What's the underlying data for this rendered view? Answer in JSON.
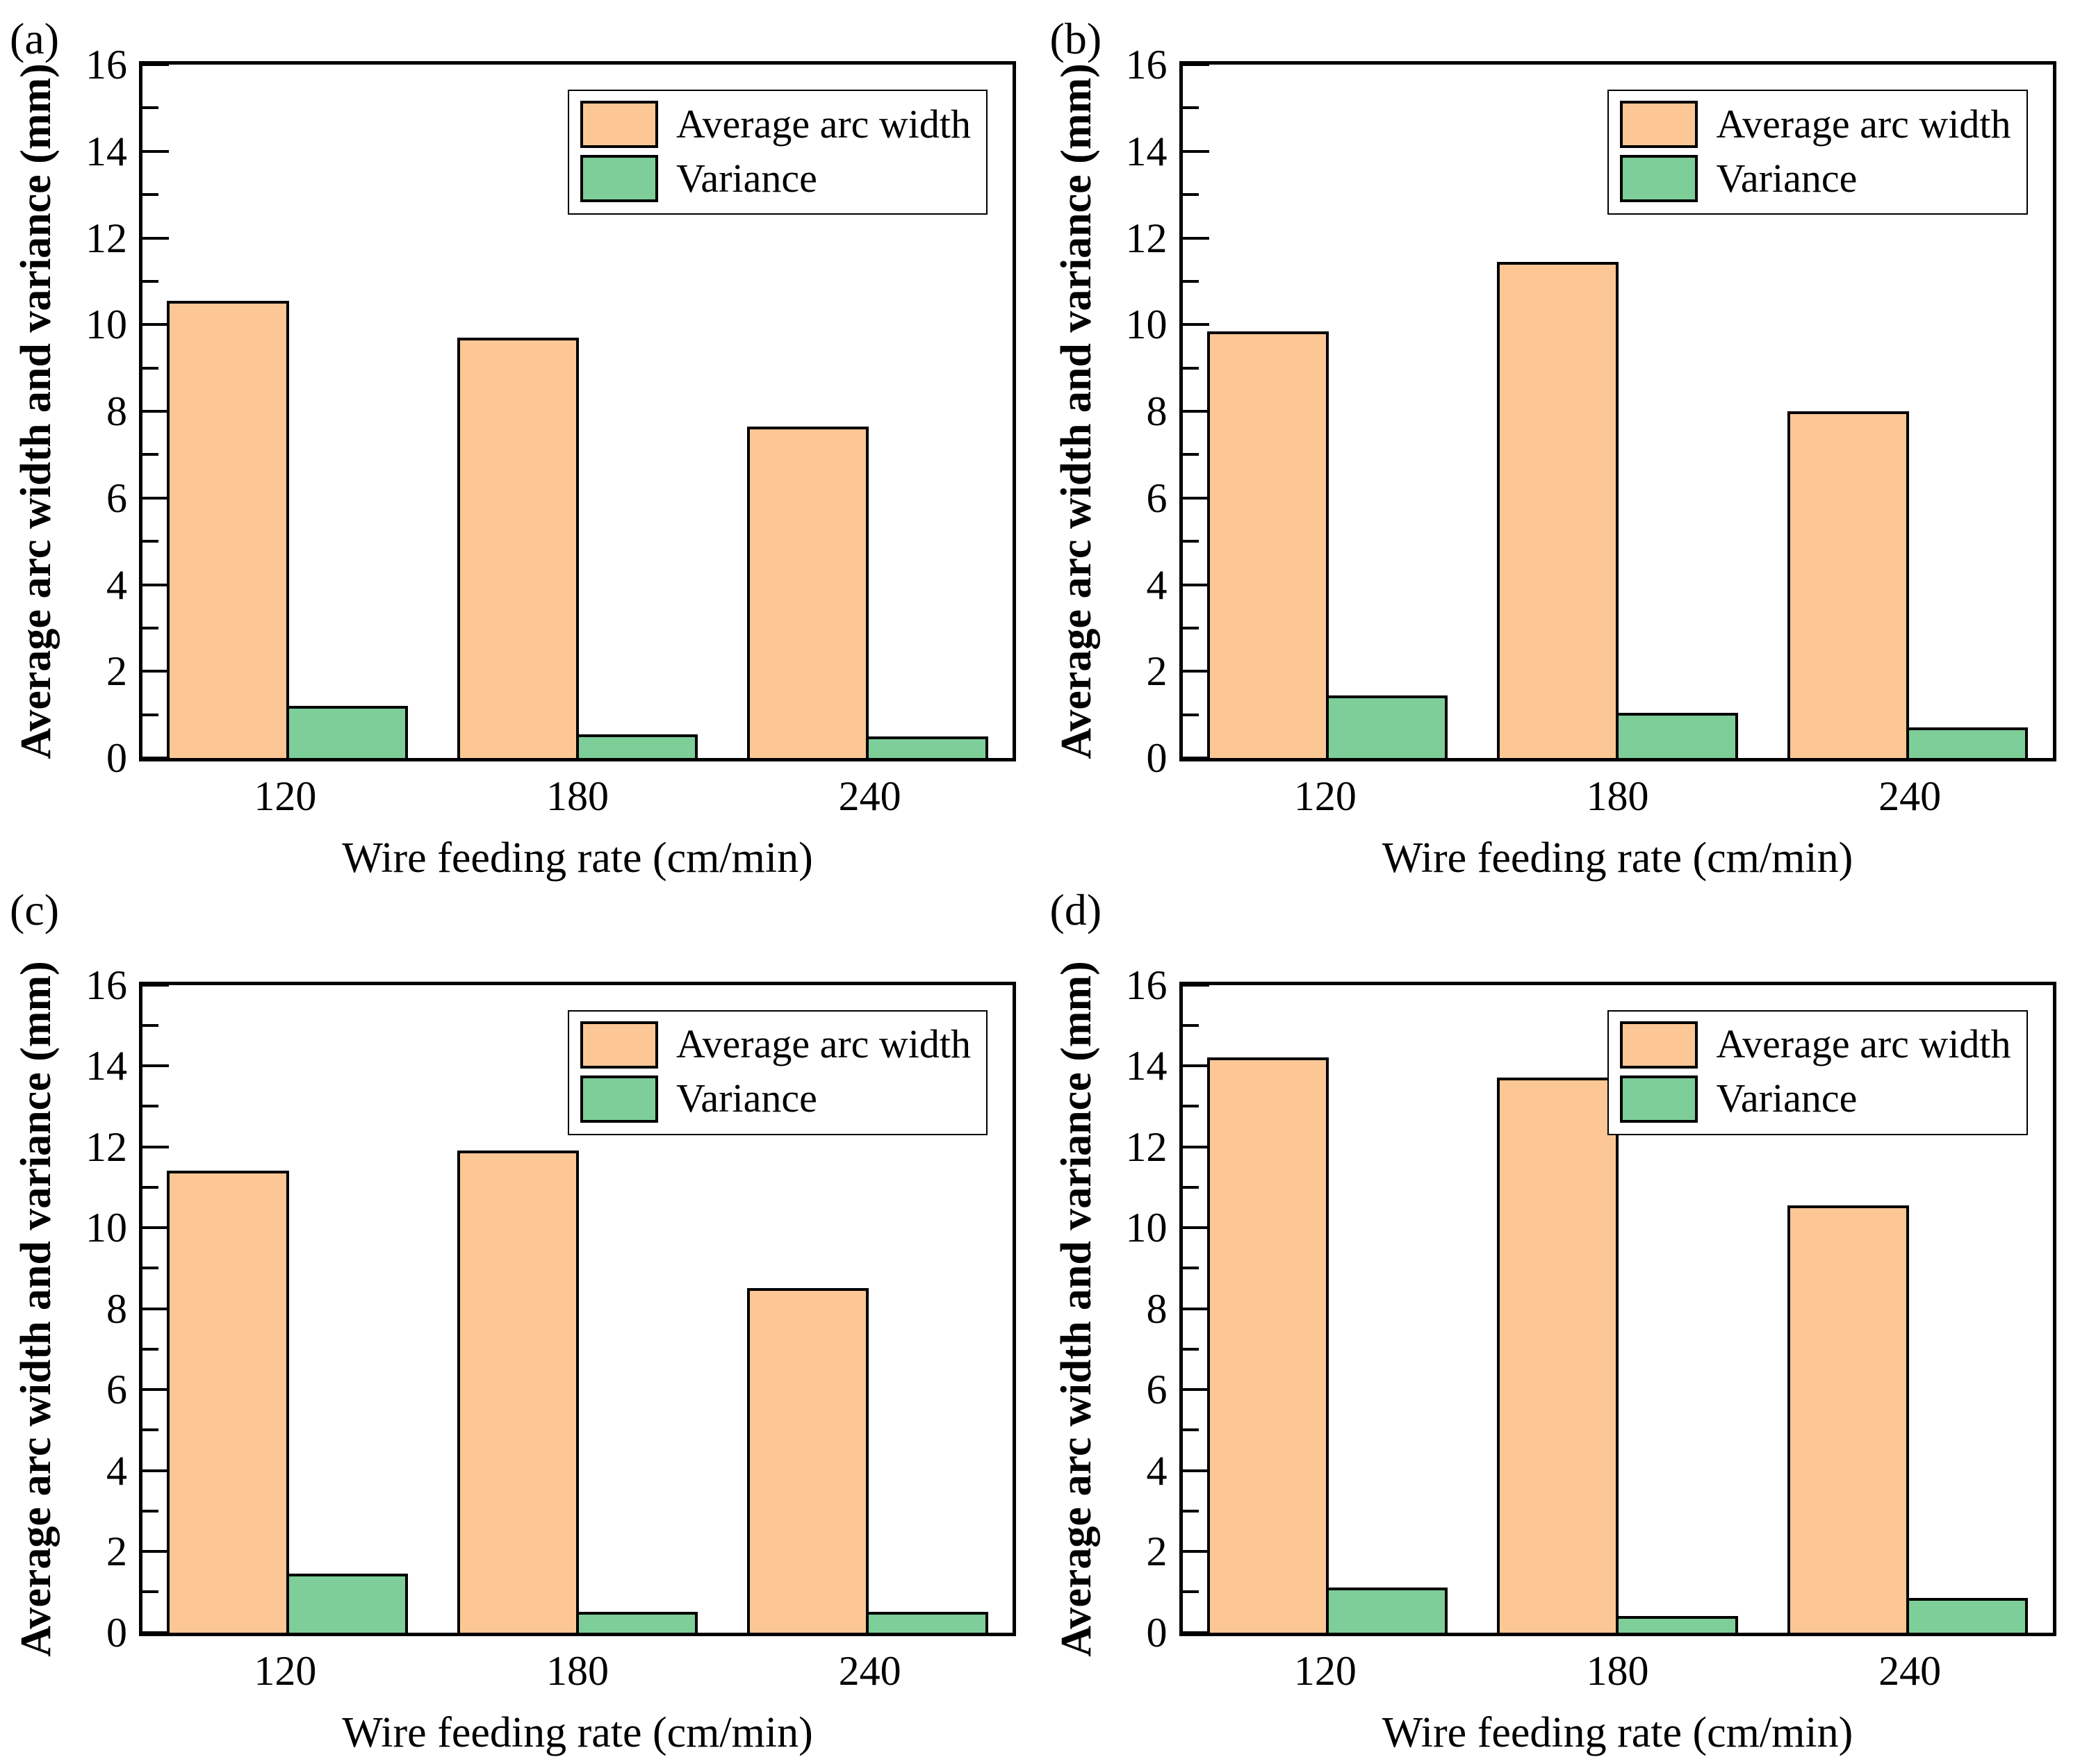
{
  "figure": {
    "background": "#ffffff",
    "axis_color": "#000000"
  },
  "colors": {
    "arc_width_fill": "#FCC795",
    "variance_fill": "#7DCE98",
    "bar_stroke": "#000000"
  },
  "chart_data": [
    {
      "type": "bar",
      "panel_label": "(a)",
      "title": "",
      "categories": [
        "120",
        "180",
        "240"
      ],
      "series": [
        {
          "name": "Average arc width",
          "color": "#FCC795",
          "values": [
            10.55,
            9.7,
            7.65
          ]
        },
        {
          "name": "Variance",
          "color": "#7DCE98",
          "values": [
            1.2,
            0.55,
            0.5
          ]
        }
      ],
      "xlabel": "Wire feeding rate (cm/min)",
      "ylabel": "Average arc width and variance (mm)",
      "ylim": [
        0,
        16
      ],
      "yticks": [
        0,
        2,
        4,
        6,
        8,
        10,
        12,
        14,
        16
      ],
      "minor_ytick_step": 1,
      "grid": false,
      "legend_position": "top-right"
    },
    {
      "type": "bar",
      "panel_label": "(b)",
      "title": "",
      "categories": [
        "120",
        "180",
        "240"
      ],
      "series": [
        {
          "name": "Average arc width",
          "color": "#FCC795",
          "values": [
            9.85,
            11.45,
            8.0
          ]
        },
        {
          "name": "Variance",
          "color": "#7DCE98",
          "values": [
            1.45,
            1.05,
            0.7
          ]
        }
      ],
      "xlabel": "Wire feeding rate (cm/min)",
      "ylabel": "Average arc width and variance (mm)",
      "ylim": [
        0,
        16
      ],
      "yticks": [
        0,
        2,
        4,
        6,
        8,
        10,
        12,
        14,
        16
      ],
      "minor_ytick_step": 1,
      "grid": false,
      "legend_position": "top-right"
    },
    {
      "type": "bar",
      "panel_label": "(c)",
      "title": "",
      "categories": [
        "120",
        "180",
        "240"
      ],
      "series": [
        {
          "name": "Average arc width",
          "color": "#FCC795",
          "values": [
            11.4,
            11.9,
            8.5
          ]
        },
        {
          "name": "Variance",
          "color": "#7DCE98",
          "values": [
            1.45,
            0.5,
            0.5
          ]
        }
      ],
      "xlabel": "Wire feeding rate (cm/min)",
      "ylabel": "Average arc width and variance (mm)",
      "ylim": [
        0,
        16
      ],
      "yticks": [
        0,
        2,
        4,
        6,
        8,
        10,
        12,
        14,
        16
      ],
      "minor_ytick_step": 1,
      "grid": false,
      "legend_position": "top-right"
    },
    {
      "type": "bar",
      "panel_label": "(d)",
      "title": "",
      "categories": [
        "120",
        "180",
        "240"
      ],
      "series": [
        {
          "name": "Average arc width",
          "color": "#FCC795",
          "values": [
            14.2,
            13.7,
            10.55
          ]
        },
        {
          "name": "Variance",
          "color": "#7DCE98",
          "values": [
            1.1,
            0.4,
            0.85
          ]
        }
      ],
      "xlabel": "Wire feeding rate (cm/min)",
      "ylabel": "Average arc width and variance (mm)",
      "ylim": [
        0,
        16
      ],
      "yticks": [
        0,
        2,
        4,
        6,
        8,
        10,
        12,
        14,
        16
      ],
      "minor_ytick_step": 1,
      "grid": false,
      "legend_position": "top-right"
    }
  ]
}
